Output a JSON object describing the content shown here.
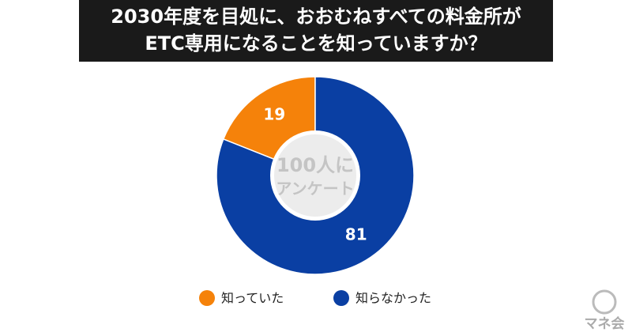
{
  "chart_data": {
    "type": "donut",
    "title": [
      "2030年度を目処に、おおむねすべての料金所が",
      "ETC専用になることを知っていますか？"
    ],
    "center_text": [
      "100人に",
      "アンケート"
    ],
    "categories": [
      "知っていた",
      "知らなかった"
    ],
    "values": [
      19,
      81
    ],
    "colors": [
      "#f5820a",
      "#0a3fa3"
    ],
    "logo": "マネ会"
  }
}
